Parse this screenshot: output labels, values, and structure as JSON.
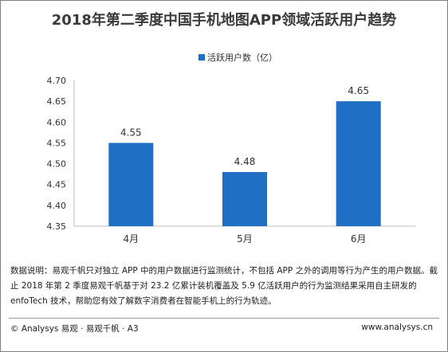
{
  "title": "2018年第二季度中国手机地图APP领域活跃用户趋势",
  "chart_data": {
    "type": "bar",
    "categories": [
      "4月",
      "5月",
      "6月"
    ],
    "series": [
      {
        "name": "活跃用户数（亿）",
        "values": [
          4.55,
          4.48,
          4.65
        ]
      }
    ],
    "data_labels": [
      "4.55",
      "4.48",
      "4.65"
    ],
    "ylim": [
      4.35,
      4.7
    ],
    "yticks": [
      "4.35",
      "4.40",
      "4.45",
      "4.50",
      "4.55",
      "4.60",
      "4.65",
      "4.70"
    ],
    "legend_position": "top-center",
    "grid": false,
    "bar_color": "#1f6fc5"
  },
  "note": "数据说明：易观千帆只对独立 APP 中的用户数据进行监测统计，不包括 APP 之外的调用等行为产生的用户数据。截止 2018 年第 2 季度易观千帆基于对 23.2 亿累计装机覆盖及 5.9 亿活跃用户的行为监测结果采用自主研发的 enfoTech 技术，帮助您有效了解数字消费者在智能手机上的行为轨迹。",
  "footer": {
    "left": "© Analysys 易观 · 易观千帆 · A3",
    "right": "www.analysys.cn"
  }
}
